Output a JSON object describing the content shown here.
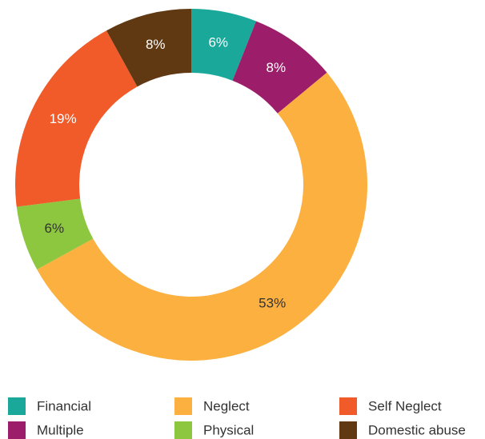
{
  "chart_data": {
    "type": "donut",
    "categories": [
      "Financial",
      "Multiple",
      "Neglect",
      "Physical",
      "Self Neglect",
      "Domestic abuse"
    ],
    "values": [
      6,
      8,
      53,
      6,
      19,
      8
    ],
    "value_labels": [
      "6%",
      "8%",
      "53%",
      "6%",
      "19%",
      "8%"
    ],
    "colors": [
      "#1aa89a",
      "#9c1e6b",
      "#fbb040",
      "#8dc63f",
      "#f15a29",
      "#603913"
    ],
    "legend": "bottom"
  }
}
